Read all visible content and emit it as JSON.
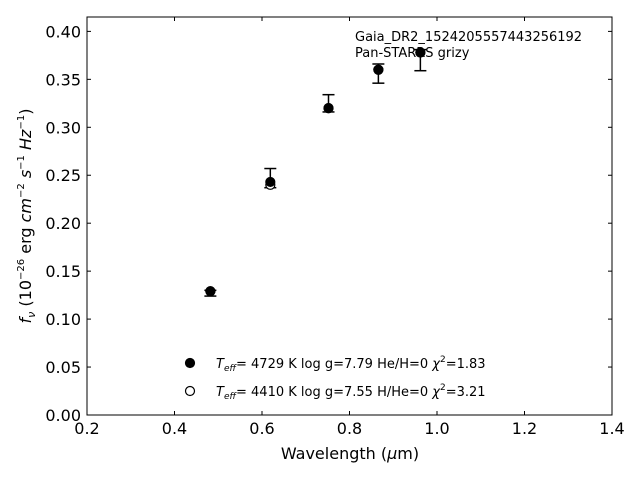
{
  "chart_data": {
    "type": "scatter",
    "title_lines": [
      "Gaia_DR2_1524205557443256192",
      "Pan-STARRS grizy"
    ],
    "xlabel": "Wavelength",
    "xlabel_unit": "(μm)",
    "ylabel": "f",
    "ylabel_sub": "ν",
    "ylabel_unit_parts": [
      "(10",
      "−26",
      " erg ",
      "cm",
      "−2",
      " ",
      "s",
      "−1",
      " ",
      "Hz",
      "−1",
      ")"
    ],
    "xlim": [
      0.2,
      1.4
    ],
    "ylim": [
      0.0,
      0.415
    ],
    "x_ticks": [
      0.2,
      0.4,
      0.6,
      0.8,
      1.0,
      1.2,
      1.4
    ],
    "y_ticks": [
      0.0,
      0.05,
      0.1,
      0.15,
      0.2,
      0.25,
      0.3,
      0.35,
      0.4
    ],
    "x_tick_labels": [
      "0.2",
      "0.4",
      "0.6",
      "0.8",
      "1.0",
      "1.2",
      "1.4"
    ],
    "y_tick_labels": [
      "0.00",
      "0.05",
      "0.10",
      "0.15",
      "0.20",
      "0.25",
      "0.30",
      "0.35",
      "0.40"
    ],
    "observed": {
      "x": [
        0.482,
        0.619,
        0.752,
        0.866,
        0.962
      ],
      "y": [
        0.127,
        0.247,
        0.325,
        0.356,
        0.37
      ],
      "yerr": [
        0.003,
        0.01,
        0.009,
        0.01,
        0.011
      ]
    },
    "series": [
      {
        "marker": "filled-circle",
        "x": [
          0.482,
          0.619,
          0.752,
          0.866,
          0.962
        ],
        "y": [
          0.129,
          0.243,
          0.32,
          0.36,
          0.378
        ]
      },
      {
        "marker": "open-circle",
        "x": [
          0.482,
          0.619,
          0.752,
          0.866,
          0.962
        ],
        "y": [
          0.129,
          0.24,
          0.32,
          0.36,
          0.378
        ]
      }
    ],
    "legend": {
      "placement": "lower-center",
      "entries": [
        {
          "marker": "filled-circle",
          "teff_value": "4729 K",
          "logg_text": "log g=7.79",
          "comp_text": "He/H=0",
          "chi_value": "=1.83"
        },
        {
          "marker": "open-circle",
          "teff_value": "4410 K",
          "logg_text": "log g=7.55",
          "comp_text": "H/He=0",
          "chi_value": "=3.21"
        }
      ]
    },
    "colors": {
      "marker": "#000000",
      "axes": "#000000",
      "background": "#ffffff"
    }
  }
}
